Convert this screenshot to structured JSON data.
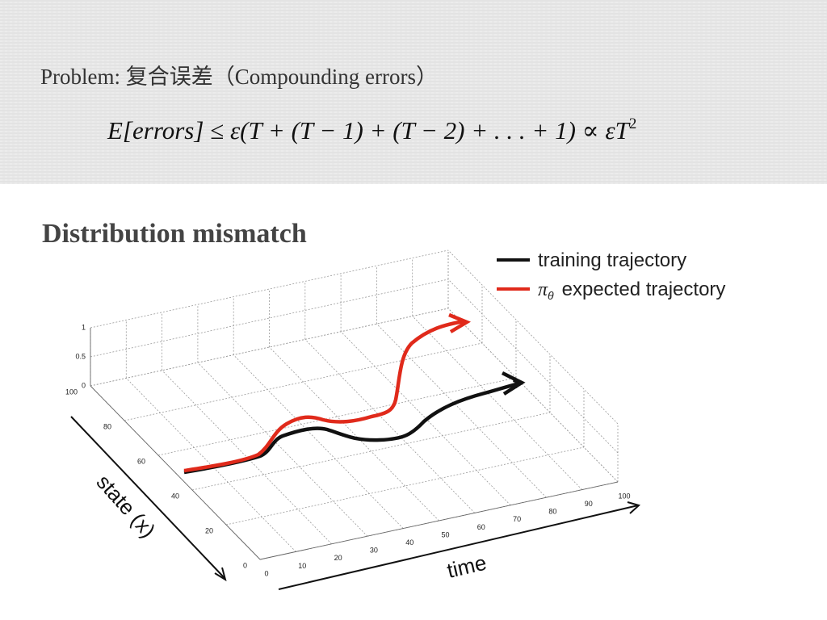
{
  "header": {
    "title": "Problem: 复合误差（Compounding errors）",
    "formula": "E[errors] ≤ ε(T + (T − 1) + (T − 2) + . . . + 1) ∝ εT",
    "formula_exponent": "2"
  },
  "subtitle": "Distribution mismatch",
  "figure": {
    "legend": [
      {
        "label": "training trajectory"
      },
      {
        "symbol": "π",
        "subscript": "θ",
        "label": "expected trajectory"
      }
    ],
    "z_ticks": [
      "0",
      "0.5",
      "1"
    ],
    "state_ticks": [
      "0",
      "20",
      "40",
      "60",
      "80",
      "100"
    ],
    "time_ticks": [
      "0",
      "10",
      "20",
      "30",
      "40",
      "50",
      "60",
      "70",
      "80",
      "90",
      "100"
    ],
    "state_label": "state (x)",
    "time_label": "time"
  }
}
